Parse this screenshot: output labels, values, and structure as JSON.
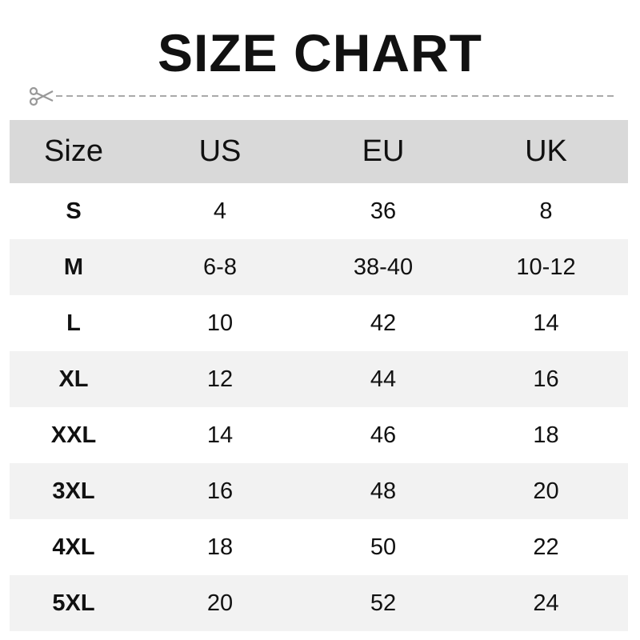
{
  "title": "SIZE CHART",
  "cut_icon": "scissors-icon",
  "colors": {
    "header_bg": "#d9d9d9",
    "alt_row_bg": "#f2f2f2",
    "dash": "#aaaaaa"
  },
  "table": {
    "headers": [
      "Size",
      "US",
      "EU",
      "UK"
    ],
    "rows": [
      [
        "S",
        "4",
        "36",
        "8"
      ],
      [
        "M",
        "6-8",
        "38-40",
        "10-12"
      ],
      [
        "L",
        "10",
        "42",
        "14"
      ],
      [
        "XL",
        "12",
        "44",
        "16"
      ],
      [
        "XXL",
        "14",
        "46",
        "18"
      ],
      [
        "3XL",
        "16",
        "48",
        "20"
      ],
      [
        "4XL",
        "18",
        "50",
        "22"
      ],
      [
        "5XL",
        "20",
        "52",
        "24"
      ]
    ]
  }
}
